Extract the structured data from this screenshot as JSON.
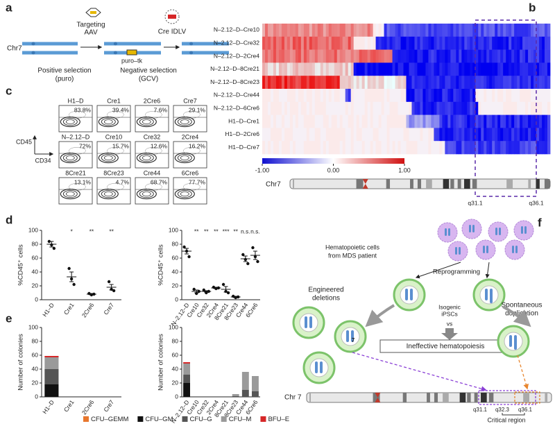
{
  "panel_labels": [
    "a",
    "b",
    "c",
    "d",
    "e",
    "f"
  ],
  "a": {
    "chromosome": "Chr7",
    "step1": [
      "Targeting",
      "AAV"
    ],
    "step2": "Cre IDLV",
    "cassette": "puro–tk",
    "positive": [
      "Positive selection",
      "(puro)"
    ],
    "negative": [
      "Negative selection",
      "(GCV)"
    ]
  },
  "b": {
    "rows": [
      "N–2.12–D–Cre10",
      "N–2.12–D–Cre32",
      "N–2.12–D–2Cre4",
      "N–2.12–D–8Cre21",
      "N–2.12–D–8Cre23",
      "N–2.12–D–Cre44",
      "N–2.12–D–6Cre6",
      "H1–D–Cre1",
      "H1–D–2Cre6",
      "H1–D–Cre7"
    ],
    "colorbar_ticks": [
      {
        "value": -1,
        "label": "-1.00"
      },
      {
        "value": 0,
        "label": "0.00"
      },
      {
        "value": 1,
        "label": "1.00"
      }
    ],
    "colorbar_lim": [
      -1,
      1
    ],
    "chromosome": "Chr7",
    "bands": [
      "q31.1",
      "q36.1"
    ]
  },
  "c": {
    "y_label": "CD45",
    "x_label": "CD34",
    "plots": [
      {
        "name": "H1–D",
        "percent": "83.8%"
      },
      {
        "name": "Cre1",
        "percent": "39.4%"
      },
      {
        "name": "2Cre6",
        "percent": "7.6%"
      },
      {
        "name": "Cre7",
        "percent": "29.1%"
      },
      {
        "name": "N–2.12–D",
        "percent": "72%"
      },
      {
        "name": "Cre10",
        "percent": "15.7%"
      },
      {
        "name": "Cre32",
        "percent": "12.6%"
      },
      {
        "name": "2Cre4",
        "percent": "16.2%"
      },
      {
        "name": "8Cre21",
        "percent": "13.1%"
      },
      {
        "name": "8Cre23",
        "percent": "4.7%"
      },
      {
        "name": "Cre44",
        "percent": "68.7%"
      },
      {
        "name": "6Cre6",
        "percent": "77.7%"
      }
    ]
  },
  "chart_data": [
    {
      "type": "dot",
      "ylabel": "%CD45⁺ cells",
      "categories": [
        "H1–D",
        "Cre1",
        "2Cre6",
        "Cre7"
      ],
      "points": [
        [
          84,
          79,
          74
        ],
        [
          45,
          30,
          22
        ],
        [
          9,
          7,
          8
        ],
        [
          26,
          15,
          13
        ]
      ],
      "values": [
        80,
        33,
        8,
        18
      ],
      "errors": [
        4,
        7,
        1,
        4
      ],
      "annotations": [
        null,
        "*",
        "**",
        "**"
      ],
      "ylim": [
        0,
        100
      ],
      "yticks": [
        0,
        20,
        40,
        60,
        80,
        100
      ]
    },
    {
      "type": "dot",
      "ylabel": "%CD45⁺ cells",
      "categories": [
        "N–2.12–D",
        "Cre10",
        "Cre32",
        "2Cre4",
        "8Cre21",
        "8Cre23",
        "Cre44",
        "6Cre6"
      ],
      "points": [
        [
          76,
          70,
          62
        ],
        [
          15,
          9,
          12
        ],
        [
          14,
          10,
          12
        ],
        [
          18,
          16,
          17
        ],
        [
          22,
          12,
          10
        ],
        [
          5,
          3,
          4
        ],
        [
          65,
          58,
          52
        ],
        [
          75,
          62,
          55
        ]
      ],
      "values": [
        70,
        12,
        12,
        17,
        15,
        4,
        59,
        64
      ],
      "errors": [
        4,
        2,
        1,
        1,
        4,
        1,
        4,
        6
      ],
      "annotations": [
        null,
        "**",
        "**",
        "**",
        "***",
        "**",
        "n.s.",
        "n.s."
      ],
      "ylim": [
        0,
        100
      ],
      "yticks": [
        0,
        20,
        40,
        60,
        80,
        100
      ]
    },
    {
      "type": "stacked_bar",
      "ylabel": "Number of colonies",
      "categories": [
        "H1–D",
        "Cre1",
        "2Cre6",
        "Cre7"
      ],
      "series": [
        {
          "name": "CFU–GEMM",
          "color": "#e8772e",
          "values": [
            0,
            0,
            0,
            0
          ]
        },
        {
          "name": "CFU–GM",
          "color": "#111111",
          "values": [
            18,
            0,
            0,
            0
          ]
        },
        {
          "name": "CFU–G",
          "color": "#555555",
          "values": [
            22,
            0,
            0,
            0
          ]
        },
        {
          "name": "CFU–M",
          "color": "#9a9a9a",
          "values": [
            17,
            0,
            0,
            0
          ]
        },
        {
          "name": "BFU–E",
          "color": "#d62728",
          "values": [
            2,
            0,
            0,
            0
          ]
        }
      ],
      "ylim": [
        0,
        100
      ],
      "yticks": [
        0,
        20,
        40,
        60,
        80,
        100
      ]
    },
    {
      "type": "stacked_bar",
      "ylabel": "Number of colonies",
      "categories": [
        "N–2.12–D",
        "Cre10",
        "Cre32",
        "2Cre4",
        "8Cre21",
        "8Cre23",
        "Cre44",
        "6Cre6"
      ],
      "series": [
        {
          "color": "#e8772e",
          "values": [
            0,
            0,
            0,
            0,
            0,
            0,
            0,
            0
          ]
        },
        {
          "color": "#111111",
          "values": [
            20,
            0,
            0,
            0,
            0,
            0,
            0,
            0
          ]
        },
        {
          "color": "#555555",
          "values": [
            12,
            0,
            0,
            0,
            0,
            1,
            10,
            8
          ]
        },
        {
          "color": "#9a9a9a",
          "values": [
            16,
            0,
            0,
            0,
            0,
            3,
            26,
            22
          ]
        },
        {
          "color": "#d62728",
          "values": [
            2,
            0,
            0,
            0,
            0,
            0,
            0,
            0
          ]
        }
      ],
      "ylim": [
        0,
        100
      ],
      "yticks": [
        0,
        20,
        40,
        60,
        80,
        100
      ]
    }
  ],
  "f": {
    "source": [
      "Hematopoietic cells",
      "from MDS patient"
    ],
    "reprogramming": "Reprogramming",
    "isogenic": [
      "Isogenic",
      "iPSCs"
    ],
    "vs": "vs",
    "left": [
      "Engineered",
      "deletions"
    ],
    "right": [
      "Spontaneous",
      "duplication"
    ],
    "outcome": "Ineffective hematopoiesis",
    "chromosome": "Chr 7",
    "bands": [
      "q31.1",
      "q32.3",
      "q36.1"
    ],
    "region": "Critical region",
    "chrom_number": "7"
  }
}
